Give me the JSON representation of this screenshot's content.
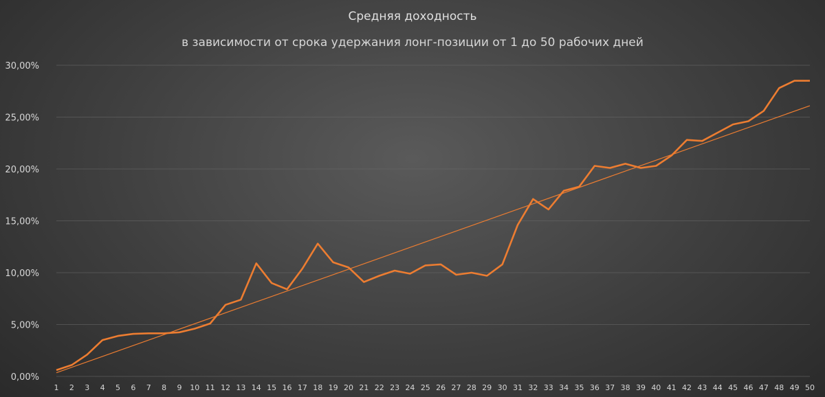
{
  "chart_data": {
    "type": "line",
    "title": "Средняя доходность",
    "subtitle": "в зависимости от срока удержания лонг-позиции от 1 до 50 рабочих дней",
    "xlabel": "",
    "ylabel": "",
    "ylim": [
      0,
      30
    ],
    "y_ticks": [
      0,
      5,
      10,
      15,
      20,
      25,
      30
    ],
    "y_tick_labels": [
      "0,00%",
      "5,00%",
      "10,00%",
      "15,00%",
      "20,00%",
      "25,00%",
      "30,00%"
    ],
    "grid": true,
    "legend": "none",
    "x": [
      1,
      2,
      3,
      4,
      5,
      6,
      7,
      8,
      9,
      10,
      11,
      12,
      13,
      14,
      15,
      16,
      17,
      18,
      19,
      20,
      21,
      22,
      23,
      24,
      25,
      26,
      27,
      28,
      29,
      30,
      31,
      32,
      33,
      34,
      35,
      36,
      37,
      38,
      39,
      40,
      41,
      42,
      43,
      44,
      45,
      46,
      47,
      48,
      49,
      50
    ],
    "series": [
      {
        "values": [
          0.6,
          1.1,
          2.1,
          3.5,
          3.9,
          4.1,
          4.15,
          4.15,
          4.25,
          4.6,
          5.1,
          6.9,
          7.4,
          10.9,
          9.0,
          8.4,
          10.4,
          12.8,
          11.0,
          10.5,
          9.1,
          9.7,
          10.2,
          9.9,
          10.7,
          10.8,
          9.8,
          10.0,
          9.7,
          10.8,
          14.6,
          17.1,
          16.1,
          17.9,
          18.3,
          20.3,
          20.1,
          20.5,
          20.1,
          20.3,
          21.3,
          22.8,
          22.7,
          23.5,
          24.3,
          24.6,
          25.6,
          27.8,
          28.5,
          28.5
        ],
        "color": "#ED7D31"
      },
      {
        "type": "trendline",
        "values_endpoints": [
          0.35,
          26.1
        ],
        "color": "#ED7D31"
      }
    ]
  }
}
